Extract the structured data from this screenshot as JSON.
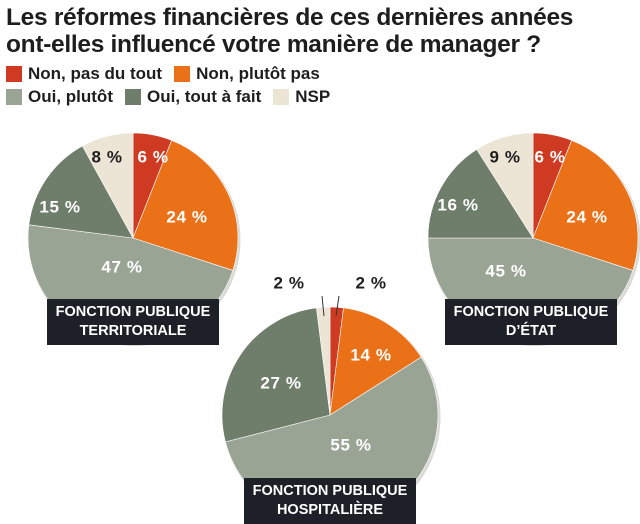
{
  "title": {
    "line1": "Les réformes financières de ces dernières années",
    "line2": "ont-elles influencé votre manière de manager ?"
  },
  "legend": [
    {
      "label": "Non, pas du tout",
      "color": "#cf3a23"
    },
    {
      "label": "Non, plutôt pas",
      "color": "#ea7117"
    },
    {
      "label": "Oui, plutôt",
      "color": "#9aa494"
    },
    {
      "label": "Oui, tout à fait",
      "color": "#6f7d6b"
    },
    {
      "label": "NSP",
      "color": "#ece4d4"
    }
  ],
  "chart_data": [
    {
      "type": "pie",
      "title": "FONCTION PUBLIQUE TERRITORIALE",
      "title_lines": [
        "FONCTION PUBLIQUE",
        "TERRITORIALE"
      ],
      "slices": [
        {
          "category": "Non, pas du tout",
          "value": 6,
          "label": "6 %"
        },
        {
          "category": "Non, plutôt pas",
          "value": 24,
          "label": "24 %"
        },
        {
          "category": "Oui, plutôt",
          "value": 47,
          "label": "47 %"
        },
        {
          "category": "Oui, tout à fait",
          "value": 15,
          "label": "15 %"
        },
        {
          "category": "NSP",
          "value": 8,
          "label": "8 %"
        }
      ]
    },
    {
      "type": "pie",
      "title": "FONCTION PUBLIQUE HOSPITALIÈRE",
      "title_lines": [
        "FONCTION PUBLIQUE",
        "HOSPITALIÈRE"
      ],
      "slices": [
        {
          "category": "Non, pas du tout",
          "value": 2,
          "label": "2 %"
        },
        {
          "category": "Non, plutôt pas",
          "value": 14,
          "label": "14 %"
        },
        {
          "category": "Oui, plutôt",
          "value": 55,
          "label": "55 %"
        },
        {
          "category": "Oui, tout à fait",
          "value": 27,
          "label": "27 %"
        },
        {
          "category": "NSP",
          "value": 2,
          "label": "2 %"
        }
      ]
    },
    {
      "type": "pie",
      "title": "FONCTION PUBLIQUE D’ÉTAT",
      "title_lines": [
        "FONCTION PUBLIQUE",
        "D’ÉTAT"
      ],
      "slices": [
        {
          "category": "Non, pas du tout",
          "value": 6,
          "label": "6 %"
        },
        {
          "category": "Non, plutôt pas",
          "value": 24,
          "label": "24 %"
        },
        {
          "category": "Oui, plutôt",
          "value": 45,
          "label": "45 %"
        },
        {
          "category": "Oui, tout à fait",
          "value": 16,
          "label": "16 %"
        },
        {
          "category": "NSP",
          "value": 9,
          "label": "9 %"
        }
      ]
    }
  ]
}
